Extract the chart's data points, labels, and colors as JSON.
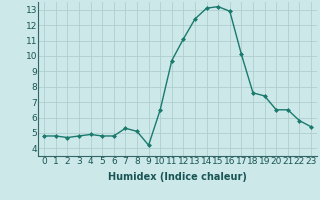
{
  "x": [
    0,
    1,
    2,
    3,
    4,
    5,
    6,
    7,
    8,
    9,
    10,
    11,
    12,
    13,
    14,
    15,
    16,
    17,
    18,
    19,
    20,
    21,
    22,
    23
  ],
  "y": [
    4.8,
    4.8,
    4.7,
    4.8,
    4.9,
    4.8,
    4.8,
    5.3,
    5.1,
    4.2,
    6.5,
    9.7,
    11.1,
    12.4,
    13.1,
    13.2,
    12.9,
    10.1,
    7.6,
    7.4,
    6.5,
    6.5,
    5.8,
    5.4
  ],
  "line_color": "#1a7a6e",
  "marker": "D",
  "marker_size": 2,
  "bg_color": "#cce8e8",
  "grid_color": "#b0cece",
  "xlabel": "Humidex (Indice chaleur)",
  "xlim": [
    -0.5,
    23.5
  ],
  "ylim": [
    3.5,
    13.5
  ],
  "yticks": [
    4,
    5,
    6,
    7,
    8,
    9,
    10,
    11,
    12,
    13
  ],
  "xticks": [
    0,
    1,
    2,
    3,
    4,
    5,
    6,
    7,
    8,
    9,
    10,
    11,
    12,
    13,
    14,
    15,
    16,
    17,
    18,
    19,
    20,
    21,
    22,
    23
  ],
  "xlabel_fontsize": 7,
  "tick_fontsize": 6.5,
  "line_width": 1.0
}
